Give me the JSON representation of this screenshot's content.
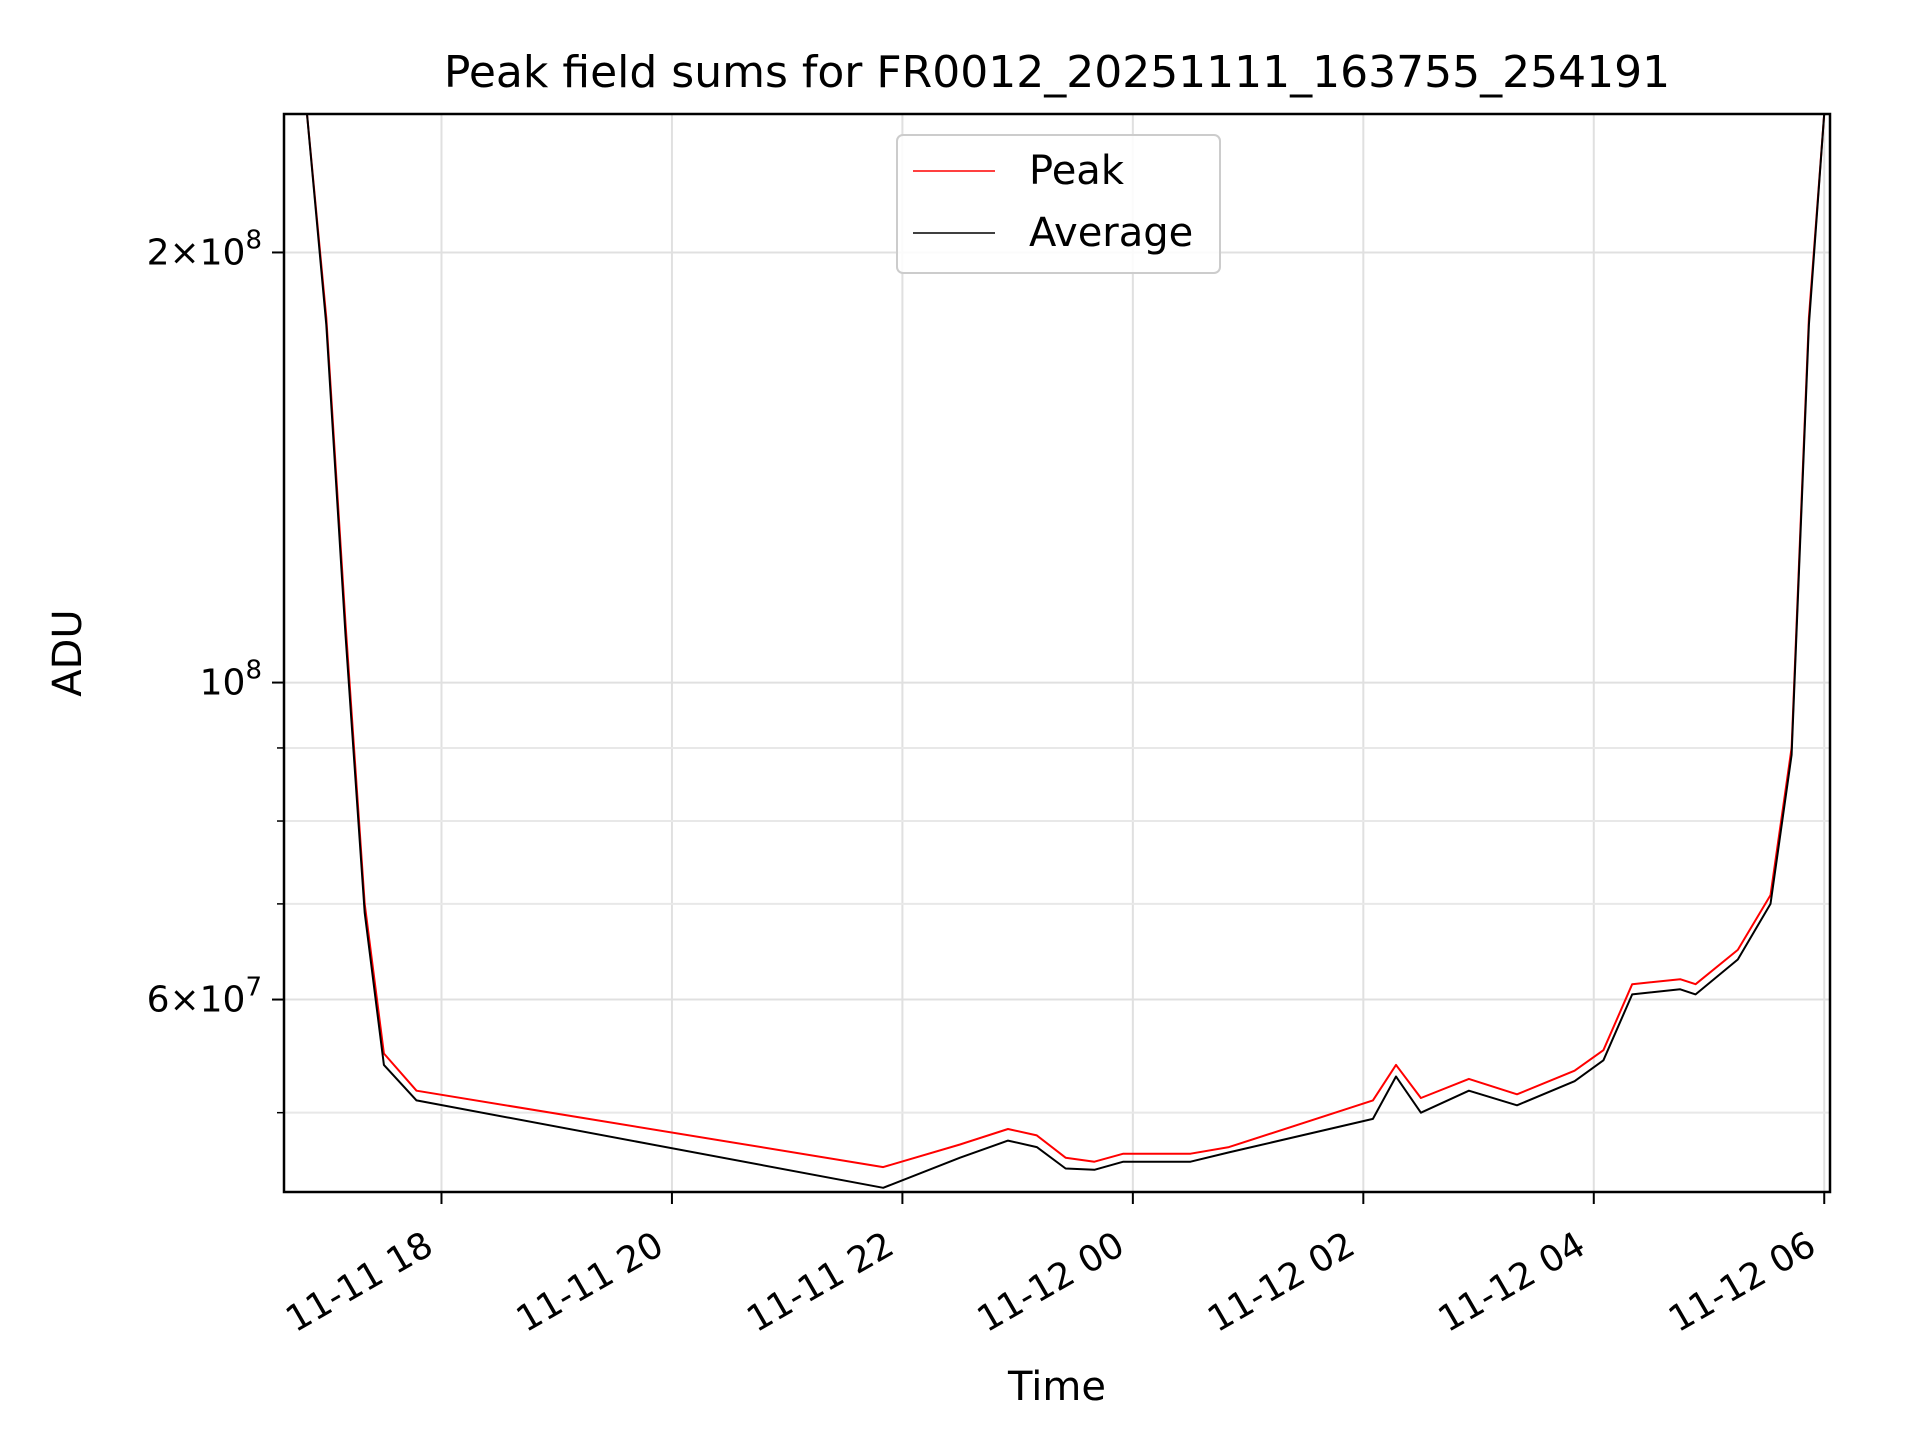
{
  "chart_data": {
    "type": "line",
    "title": "Peak field sums for FR0012_20251111_163755_254191",
    "xlabel": "Time",
    "ylabel": "ADU",
    "yscale": "log",
    "grid": true,
    "legend_position": "top-center",
    "xlim": [
      "2025-11-11 16:38",
      "2025-11-12 06:03"
    ],
    "ylim": [
      44000000,
      250000000
    ],
    "x_ticks": [
      "11-11 18",
      "11-11 20",
      "11-11 22",
      "11-12 00",
      "11-12 02",
      "11-12 04",
      "11-12 06"
    ],
    "y_ticks": [
      {
        "value": 200000000,
        "mantissa": "2",
        "exponent": "8"
      },
      {
        "value": 100000000,
        "mantissa": "",
        "exponent": "8"
      },
      {
        "value": 60000000,
        "mantissa": "6",
        "exponent": "7"
      }
    ],
    "series": [
      {
        "name": "Peak",
        "color": "#ff0000",
        "points": [
          [
            "2025-11-11 16:38",
            250000000
          ],
          [
            "2025-11-11 16:50",
            250000000
          ],
          [
            "2025-11-11 17:00",
            180000000
          ],
          [
            "2025-11-11 17:10",
            110000000
          ],
          [
            "2025-11-11 17:20",
            70000000
          ],
          [
            "2025-11-11 17:30",
            55000000
          ],
          [
            "2025-11-11 17:47",
            51800000
          ],
          [
            "2025-11-11 21:50",
            45800000
          ],
          [
            "2025-11-11 22:30",
            47500000
          ],
          [
            "2025-11-11 22:55",
            48700000
          ],
          [
            "2025-11-11 23:10",
            48200000
          ],
          [
            "2025-11-11 23:25",
            46500000
          ],
          [
            "2025-11-11 23:40",
            46200000
          ],
          [
            "2025-11-11 23:55",
            46800000
          ],
          [
            "2025-11-12 00:30",
            46800000
          ],
          [
            "2025-11-12 00:50",
            47300000
          ],
          [
            "2025-11-12 02:05",
            51000000
          ],
          [
            "2025-11-12 02:17",
            54000000
          ],
          [
            "2025-11-12 02:30",
            51200000
          ],
          [
            "2025-11-12 02:55",
            52800000
          ],
          [
            "2025-11-12 03:20",
            51500000
          ],
          [
            "2025-11-12 03:50",
            53500000
          ],
          [
            "2025-11-12 04:05",
            55300000
          ],
          [
            "2025-11-12 04:20",
            61500000
          ],
          [
            "2025-11-12 04:45",
            62000000
          ],
          [
            "2025-11-12 04:53",
            61500000
          ],
          [
            "2025-11-12 05:15",
            65000000
          ],
          [
            "2025-11-12 05:32",
            71000000
          ],
          [
            "2025-11-12 05:43",
            90000000
          ],
          [
            "2025-11-12 05:52",
            180000000
          ],
          [
            "2025-11-12 06:00",
            250000000
          ],
          [
            "2025-11-12 06:03",
            250000000
          ]
        ]
      },
      {
        "name": "Average",
        "color": "#000000",
        "points": [
          [
            "2025-11-11 16:38",
            250000000
          ],
          [
            "2025-11-11 16:50",
            250000000
          ],
          [
            "2025-11-11 17:00",
            178000000
          ],
          [
            "2025-11-11 17:10",
            108000000
          ],
          [
            "2025-11-11 17:20",
            69000000
          ],
          [
            "2025-11-11 17:30",
            54000000
          ],
          [
            "2025-11-11 17:47",
            51000000
          ],
          [
            "2025-11-11 21:50",
            44300000
          ],
          [
            "2025-11-11 22:30",
            46500000
          ],
          [
            "2025-11-11 22:55",
            47800000
          ],
          [
            "2025-11-11 23:10",
            47300000
          ],
          [
            "2025-11-11 23:25",
            45700000
          ],
          [
            "2025-11-11 23:40",
            45600000
          ],
          [
            "2025-11-11 23:55",
            46200000
          ],
          [
            "2025-11-12 00:30",
            46200000
          ],
          [
            "2025-11-12 00:50",
            46900000
          ],
          [
            "2025-11-12 02:05",
            49500000
          ],
          [
            "2025-11-12 02:17",
            53000000
          ],
          [
            "2025-11-12 02:30",
            50000000
          ],
          [
            "2025-11-12 02:55",
            51800000
          ],
          [
            "2025-11-12 03:20",
            50600000
          ],
          [
            "2025-11-12 03:50",
            52600000
          ],
          [
            "2025-11-12 04:05",
            54400000
          ],
          [
            "2025-11-12 04:20",
            60500000
          ],
          [
            "2025-11-12 04:45",
            61000000
          ],
          [
            "2025-11-12 04:53",
            60500000
          ],
          [
            "2025-11-12 05:15",
            64000000
          ],
          [
            "2025-11-12 05:32",
            70000000
          ],
          [
            "2025-11-12 05:43",
            89000000
          ],
          [
            "2025-11-12 05:52",
            178000000
          ],
          [
            "2025-11-12 06:00",
            250000000
          ],
          [
            "2025-11-12 06:03",
            250000000
          ]
        ]
      }
    ]
  }
}
